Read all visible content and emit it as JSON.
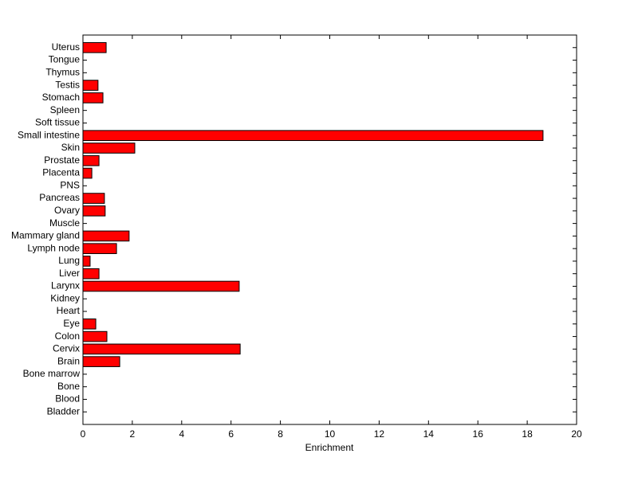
{
  "chart_data": {
    "type": "barh",
    "x_label": "Enrichment",
    "categories": [
      "Bladder",
      "Blood",
      "Bone",
      "Bone marrow",
      "Brain",
      "Cervix",
      "Colon",
      "Eye",
      "Heart",
      "Kidney",
      "Larynx",
      "Liver",
      "Lung",
      "Lymph node",
      "Mammary gland",
      "Muscle",
      "Ovary",
      "Pancreas",
      "PNS",
      "Placenta",
      "Prostate",
      "Skin",
      "Small intestine",
      "Soft tissue",
      "Spleen",
      "Stomach",
      "Testis",
      "Thymus",
      "Tongue",
      "Uterus"
    ],
    "values": [
      0,
      0,
      0,
      0,
      1.49,
      6.37,
      0.97,
      0.52,
      0,
      0,
      6.33,
      0.65,
      0.29,
      1.36,
      1.87,
      0,
      0.9,
      0.87,
      0,
      0.36,
      0.65,
      2.1,
      18.64,
      0,
      0,
      0.81,
      0.61,
      0,
      0,
      0.94
    ],
    "color": "#ff0000",
    "xlim": [
      0,
      20
    ],
    "xticks": [
      0,
      2,
      4,
      6,
      8,
      10,
      12,
      14,
      16,
      18,
      20
    ]
  }
}
